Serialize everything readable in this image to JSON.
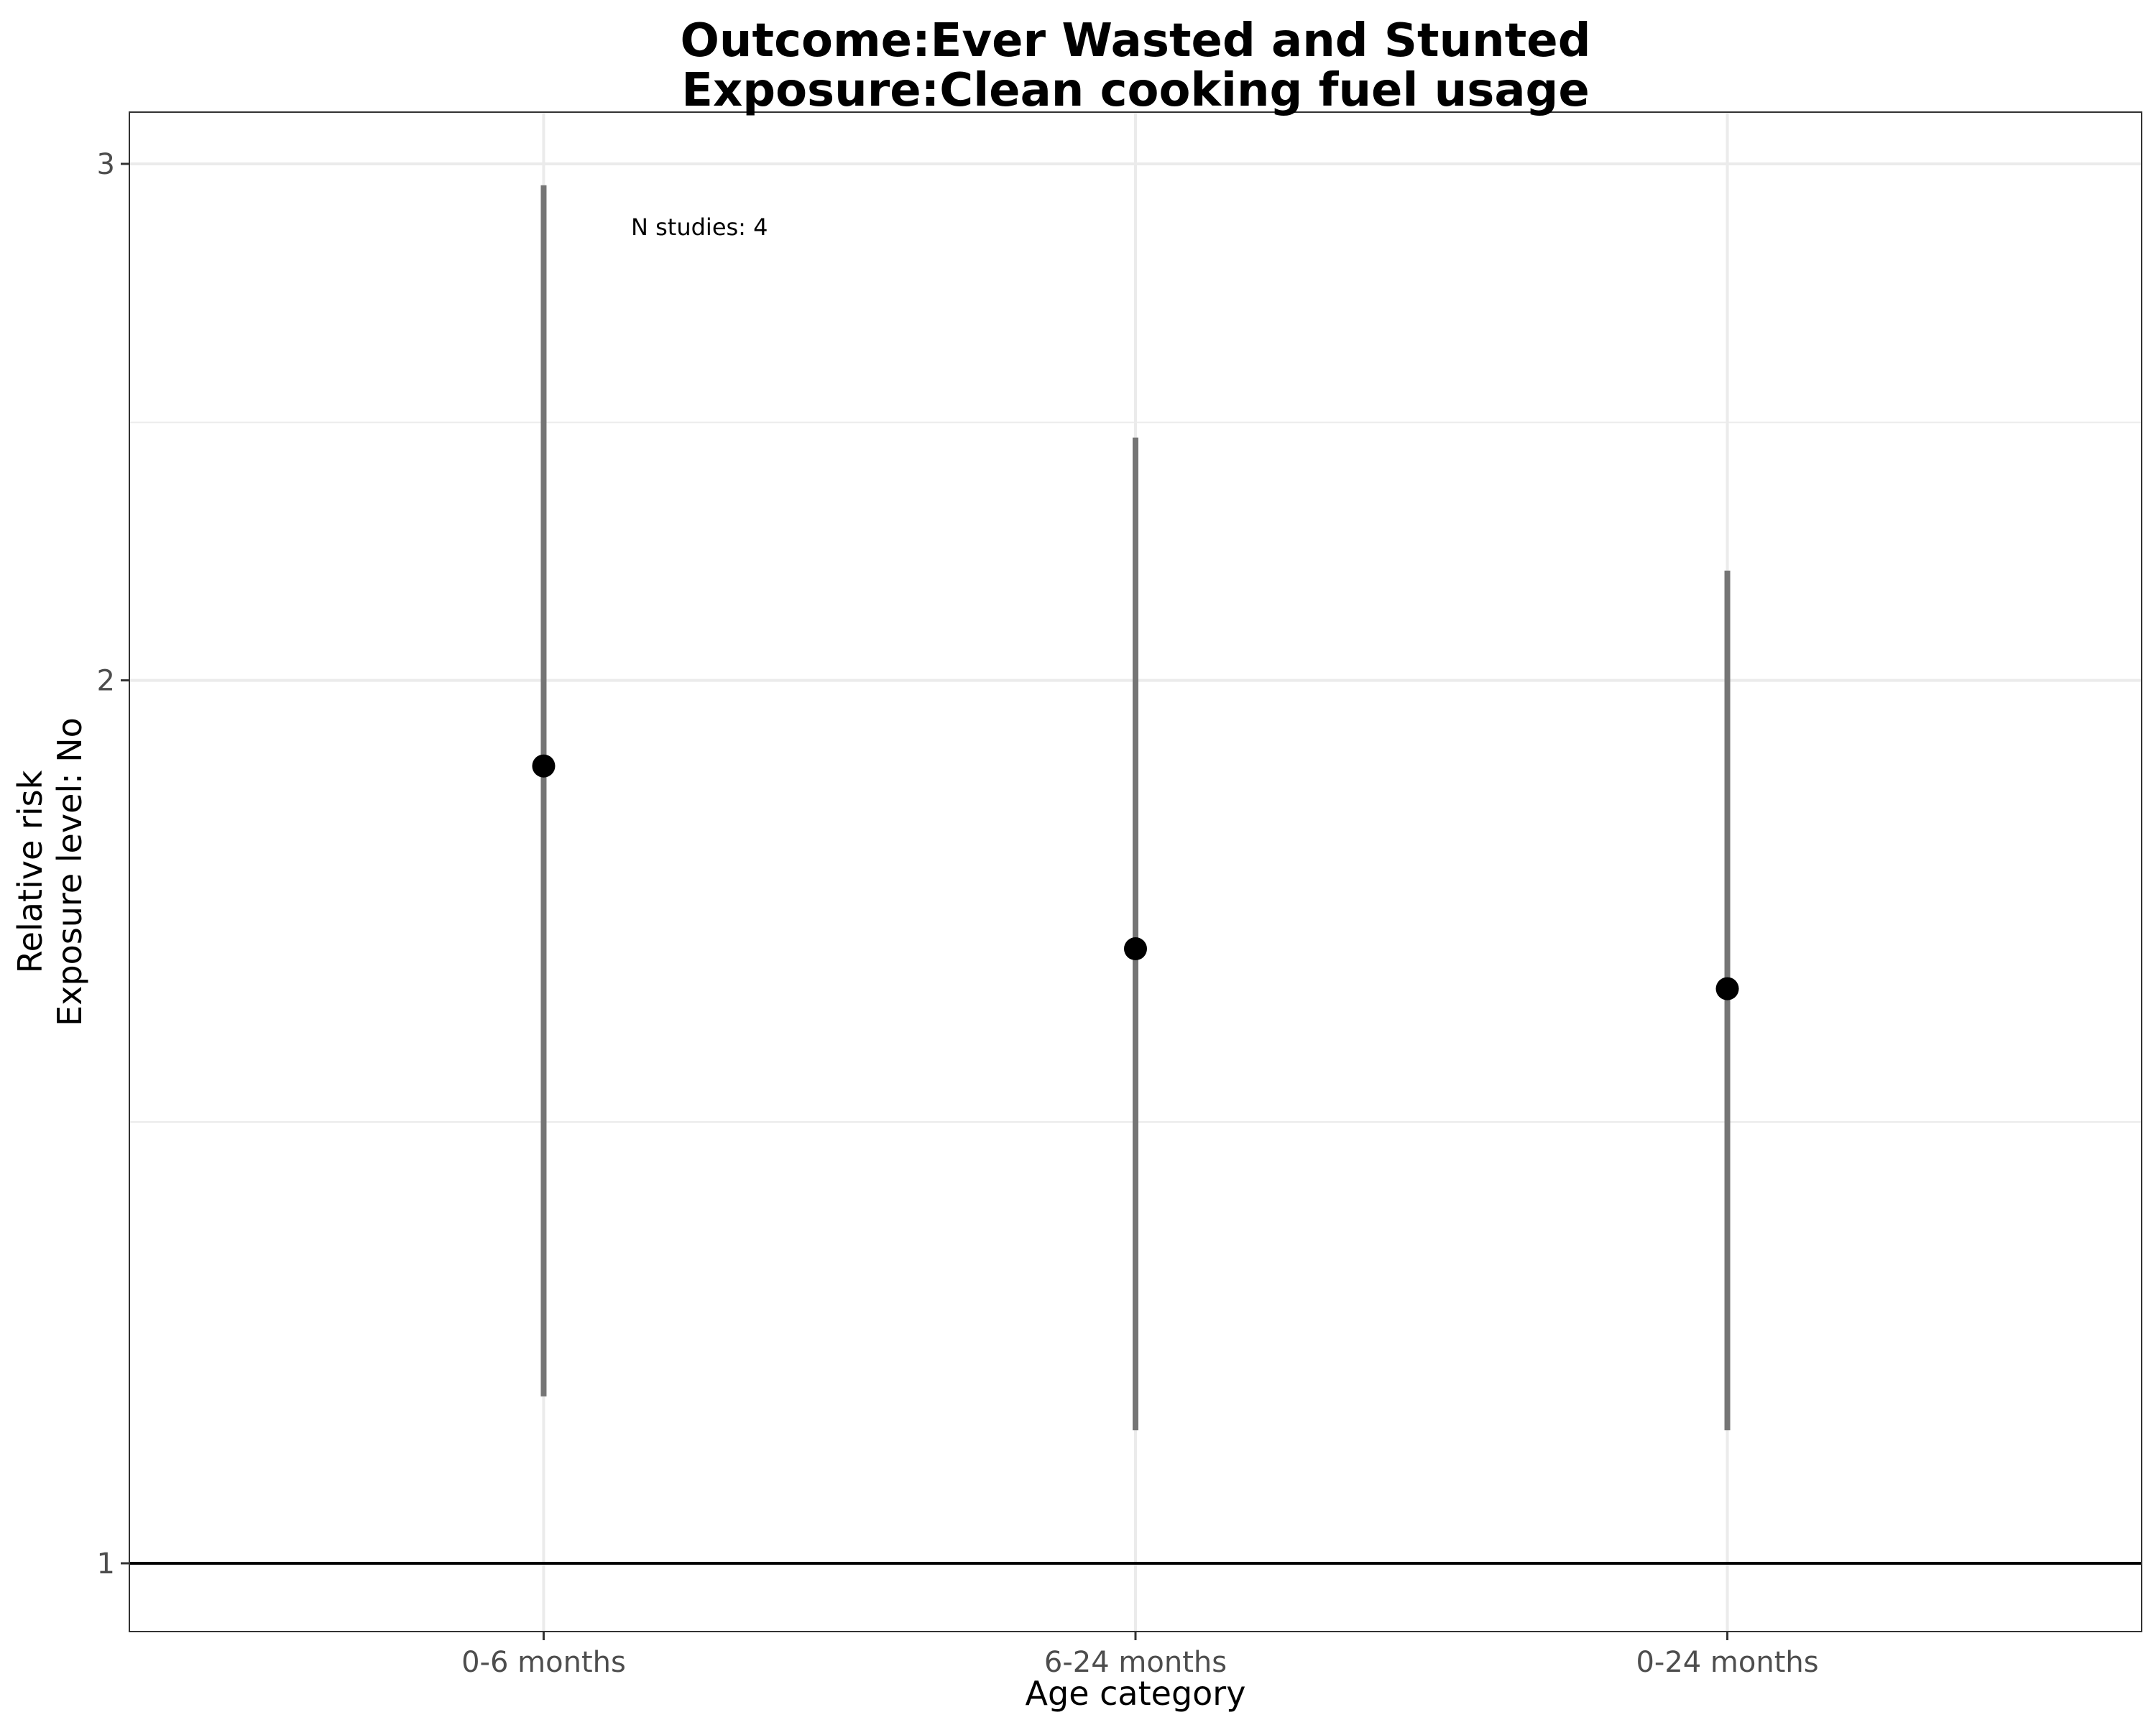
{
  "chart_data": {
    "type": "scatter",
    "title_lines": [
      "Outcome:Ever Wasted and Stunted",
      "Exposure:Clean cooking fuel usage"
    ],
    "xlabel": "Age category",
    "ylabel_lines": [
      "Relative risk",
      "Exposure level: No"
    ],
    "y_scale": "log",
    "ylim": [
      0.94,
      3.1
    ],
    "y_ticks": [
      1,
      2,
      3
    ],
    "y_tick_labels": [
      "1",
      "2",
      "3"
    ],
    "y_minor_gridlines": [
      1.414,
      2.449
    ],
    "reference_line": 1,
    "categories": [
      "0-6 months",
      "6-24 months",
      "0-24 months"
    ],
    "estimates": [
      1.87,
      1.62,
      1.57
    ],
    "ci_lower": [
      1.14,
      1.11,
      1.11
    ],
    "ci_upper": [
      2.95,
      2.42,
      2.18
    ],
    "annotation": "N studies: 4",
    "grid": true,
    "colors": {
      "point": "#000000",
      "errorbar": "#757575",
      "grid": "#ebebeb",
      "reference": "#000000"
    }
  }
}
